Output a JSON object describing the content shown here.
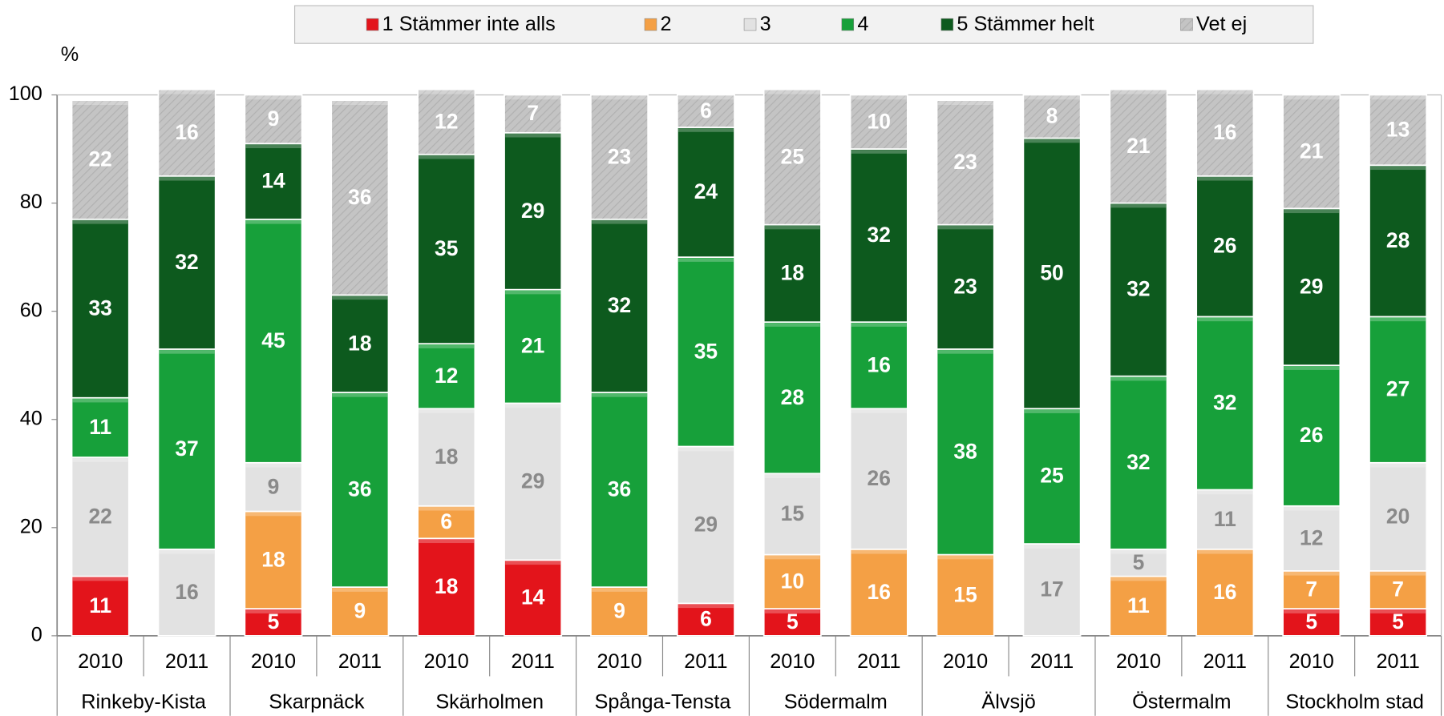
{
  "chart_data": {
    "type": "stacked_bar",
    "y_unit_label": "%",
    "categories": [
      "2010",
      "2011",
      "2010",
      "2011",
      "2010",
      "2011",
      "2010",
      "2011",
      "2010",
      "2011",
      "2010",
      "2011",
      "2010",
      "2011",
      "2010",
      "2011"
    ],
    "groups": [
      "Rinkeby-Kista",
      "Skarpnäck",
      "Skärholmen",
      "Spånga-Tensta",
      "Södermalm",
      "Älvsjö",
      "Östermalm",
      "Stockholm stad"
    ],
    "series": [
      {
        "name": "1 Stämmer inte alls",
        "color": "#e3141b",
        "label_color": "#ffffff",
        "values": [
          11,
          null,
          5,
          null,
          18,
          14,
          null,
          6,
          5,
          null,
          null,
          null,
          null,
          null,
          5,
          5
        ]
      },
      {
        "name": "2",
        "color": "#f4a045",
        "label_color": "#ffffff",
        "values": [
          null,
          null,
          18,
          9,
          6,
          null,
          9,
          null,
          10,
          16,
          15,
          null,
          11,
          16,
          7,
          7
        ]
      },
      {
        "name": "3",
        "color": "#e2e2e2",
        "label_color": "#8a8a8a",
        "values": [
          22,
          16,
          9,
          null,
          18,
          29,
          null,
          29,
          15,
          26,
          null,
          17,
          5,
          11,
          12,
          20
        ]
      },
      {
        "name": "4",
        "color": "#17a03a",
        "label_color": "#ffffff",
        "values": [
          11,
          37,
          45,
          36,
          12,
          21,
          36,
          35,
          28,
          16,
          38,
          25,
          32,
          32,
          26,
          27
        ]
      },
      {
        "name": "5 Stämmer helt",
        "color": "#0d5a1e",
        "label_color": "#ffffff",
        "values": [
          33,
          32,
          14,
          18,
          35,
          29,
          32,
          24,
          18,
          32,
          23,
          50,
          32,
          26,
          29,
          28
        ]
      },
      {
        "name": "Vet ej",
        "color": "#c4c4c4",
        "label_color": "#ffffff",
        "values": [
          22,
          16,
          9,
          36,
          12,
          7,
          23,
          6,
          25,
          10,
          23,
          8,
          21,
          16,
          21,
          13
        ]
      }
    ],
    "ylim": [
      0,
      100
    ],
    "yticks": [
      0,
      20,
      40,
      60,
      80,
      100
    ],
    "grid": false,
    "legend": "top"
  }
}
